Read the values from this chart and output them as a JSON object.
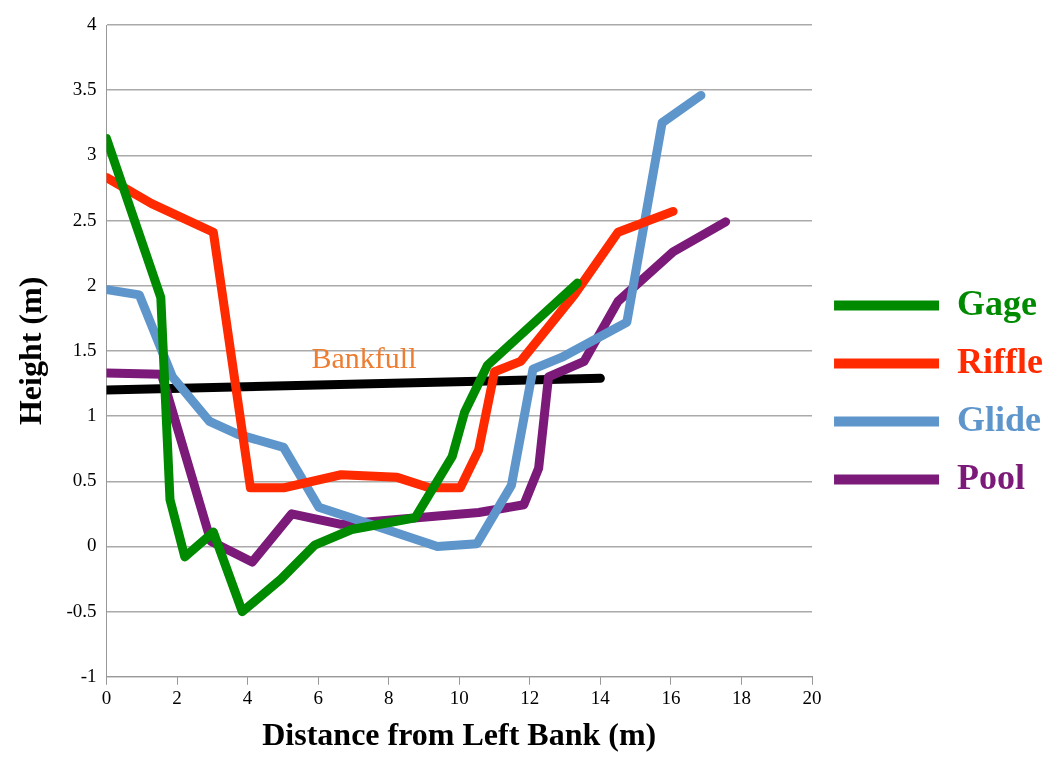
{
  "chart_data": {
    "type": "line",
    "xlabel": "Distance from Left Bank (m)",
    "ylabel": "Height (m)",
    "xlim": [
      0,
      20
    ],
    "xticks": [
      0,
      2,
      4,
      6,
      8,
      10,
      12,
      14,
      16,
      18,
      20
    ],
    "ylim": [
      -1,
      4
    ],
    "yticks": [
      -1,
      -0.5,
      0,
      0.5,
      1,
      1.5,
      2,
      2.5,
      3,
      3.5,
      4
    ],
    "grid": "y",
    "legend": "right",
    "marker": "none",
    "line_style": "solid",
    "annotations": [
      {
        "text": "Bankfull",
        "x": 7.3,
        "y": 1.25
      }
    ],
    "series": [
      {
        "name": "Gage",
        "color": "#008a00",
        "x": [
          0,
          1.54,
          1.8,
          2.22,
          3.03,
          3.85,
          4.95,
          5.9,
          6.95,
          8.75,
          9.8,
          10.15,
          10.8,
          13.35
        ],
        "values": [
          3.13,
          1.91,
          0.36,
          -0.08,
          0.11,
          -0.5,
          -0.25,
          0.01,
          0.13,
          0.22,
          0.69,
          1.03,
          1.39,
          2.02
        ]
      },
      {
        "name": "Riffle",
        "color": "#ff2a00",
        "x": [
          0,
          1.28,
          3.03,
          4.08,
          5.02,
          6.65,
          8.24,
          9.15,
          10.03,
          10.55,
          11.0,
          11.74,
          13.26,
          14.5,
          16.06
        ],
        "values": [
          2.83,
          2.63,
          2.41,
          0.45,
          0.45,
          0.55,
          0.53,
          0.45,
          0.45,
          0.74,
          1.34,
          1.42,
          1.93,
          2.41,
          2.57
        ]
      },
      {
        "name": "Glide",
        "color": "#5e96cc",
        "x": [
          0,
          0.93,
          1.87,
          2.92,
          3.73,
          5.02,
          6.02,
          6.93,
          9.38,
          10.5,
          11.48,
          12.09,
          12.9,
          14.75,
          15.75,
          16.85
        ],
        "values": [
          1.97,
          1.93,
          1.3,
          0.96,
          0.86,
          0.76,
          0.3,
          0.22,
          0,
          0.02,
          0.47,
          1.36,
          1.45,
          1.72,
          3.25,
          3.46
        ]
      },
      {
        "name": "Pool",
        "color": "#7b1a78",
        "x": [
          0,
          1.56,
          2.96,
          4.13,
          5.25,
          6.65,
          10.55,
          11.83,
          12.25,
          12.53,
          13.54,
          14.5,
          16.06,
          17.55
        ],
        "values": [
          1.33,
          1.32,
          0.04,
          -0.12,
          0.25,
          0.17,
          0.26,
          0.32,
          0.6,
          1.3,
          1.42,
          1.88,
          2.26,
          2.49
        ]
      },
      {
        "color": "#000000",
        "x": [
          0,
          14.0
        ],
        "values": [
          1.2,
          1.29
        ]
      }
    ]
  }
}
